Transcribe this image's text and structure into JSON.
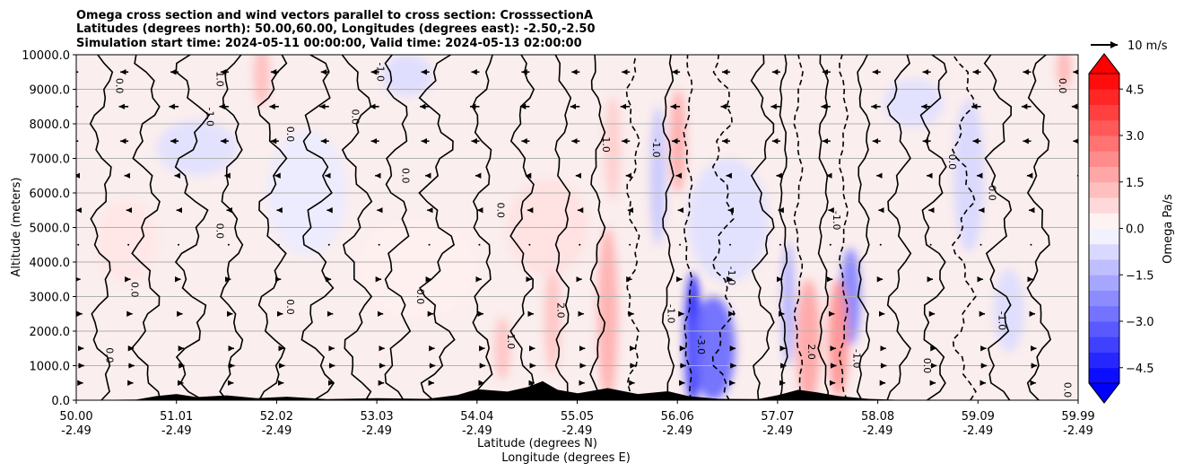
{
  "chart_data": {
    "type": "contour",
    "title_lines": [
      "Omega cross section and wind vectors parallel to cross section: CrosssectionA",
      "Latitudes (degrees north): 50.00,60.00, Longitudes (degrees east): -2.50,-2.50",
      "Simulation start time: 2024-05-11 00:00:00, Valid time: 2024-05-13 02:00:00"
    ],
    "ylabel": "Altitude (meters)",
    "xlabel_lines": [
      "Latitude (degrees N)",
      "Longitude (degrees E)"
    ],
    "ylim": [
      0,
      10000
    ],
    "xlim": [
      50.0,
      59.99
    ],
    "yticks": [
      {
        "v": 0,
        "label": "0.0"
      },
      {
        "v": 1000,
        "label": "1000.0"
      },
      {
        "v": 2000,
        "label": "2000.0"
      },
      {
        "v": 3000,
        "label": "3000.0"
      },
      {
        "v": 4000,
        "label": "4000.0"
      },
      {
        "v": 5000,
        "label": "5000.0"
      },
      {
        "v": 6000,
        "label": "6000.0"
      },
      {
        "v": 7000,
        "label": "7000.0"
      },
      {
        "v": 8000,
        "label": "8000.0"
      },
      {
        "v": 9000,
        "label": "9000.0"
      },
      {
        "v": 10000,
        "label": "10000.0"
      }
    ],
    "xticks": [
      {
        "lat": "50.00",
        "lon": "-2.49"
      },
      {
        "lat": "51.01",
        "lon": "-2.49"
      },
      {
        "lat": "52.02",
        "lon": "-2.49"
      },
      {
        "lat": "53.03",
        "lon": "-2.49"
      },
      {
        "lat": "54.04",
        "lon": "-2.49"
      },
      {
        "lat": "55.05",
        "lon": "-2.49"
      },
      {
        "lat": "56.06",
        "lon": "-2.49"
      },
      {
        "lat": "57.07",
        "lon": "-2.49"
      },
      {
        "lat": "58.08",
        "lon": "-2.49"
      },
      {
        "lat": "59.09",
        "lon": "-2.49"
      },
      {
        "lat": "59.99",
        "lon": "-2.49"
      }
    ],
    "grid": true,
    "colorbar": {
      "label": "Omega Pa/s",
      "range": [
        -5.0,
        5.0
      ],
      "levels": [
        -5.0,
        -4.5,
        -4.0,
        -3.5,
        -3.0,
        -2.5,
        -2.0,
        -1.5,
        -1.0,
        -0.5,
        0.0,
        0.5,
        1.0,
        1.5,
        2.0,
        2.5,
        3.0,
        3.5,
        4.0,
        4.5,
        5.0
      ],
      "ticks": [
        {
          "v": 4.5,
          "label": "4.5"
        },
        {
          "v": 3.0,
          "label": "3.0"
        },
        {
          "v": 1.5,
          "label": "1.5"
        },
        {
          "v": 0.0,
          "label": "0.0"
        },
        {
          "v": -1.5,
          "label": "−1.5"
        },
        {
          "v": -3.0,
          "label": "−3.0"
        },
        {
          "v": -4.5,
          "label": "−4.5"
        }
      ],
      "negative_color": "#0000ff",
      "positive_color": "#ff0000"
    },
    "quiver_key": {
      "label": "10 m/s",
      "value": 10
    },
    "features": [
      {
        "x": 56.15,
        "y": 1800,
        "v": -4.5,
        "wx": 0.08,
        "wy": 1900
      },
      {
        "x": 56.35,
        "y": 1500,
        "v": -3.0,
        "wx": 0.22,
        "wy": 1500
      },
      {
        "x": 57.72,
        "y": 3000,
        "v": -2.5,
        "wx": 0.1,
        "wy": 1400
      },
      {
        "x": 56.5,
        "y": 5200,
        "v": -0.6,
        "wx": 0.4,
        "wy": 1800
      },
      {
        "x": 57.3,
        "y": 1700,
        "v": 1.8,
        "wx": 0.12,
        "wy": 1800
      },
      {
        "x": 57.6,
        "y": 1800,
        "v": 2.2,
        "wx": 0.1,
        "wy": 1700
      },
      {
        "x": 55.3,
        "y": 2500,
        "v": 1.6,
        "wx": 0.1,
        "wy": 2500
      },
      {
        "x": 56.0,
        "y": 7500,
        "v": 1.7,
        "wx": 0.08,
        "wy": 1500
      },
      {
        "x": 55.35,
        "y": 7300,
        "v": 1.0,
        "wx": 0.08,
        "wy": 1500
      },
      {
        "x": 54.75,
        "y": 2400,
        "v": 1.2,
        "wx": 0.08,
        "wy": 1600
      },
      {
        "x": 54.25,
        "y": 1500,
        "v": 1.2,
        "wx": 0.08,
        "wy": 900
      },
      {
        "x": 51.85,
        "y": 9400,
        "v": 1.3,
        "wx": 0.08,
        "wy": 900
      },
      {
        "x": 59.85,
        "y": 9600,
        "v": 1.5,
        "wx": 0.07,
        "wy": 600
      },
      {
        "x": 55.8,
        "y": 6500,
        "v": -1.1,
        "wx": 0.08,
        "wy": 2000
      },
      {
        "x": 58.9,
        "y": 6500,
        "v": -0.8,
        "wx": 0.15,
        "wy": 2200
      },
      {
        "x": 58.35,
        "y": 8600,
        "v": -0.6,
        "wx": 0.3,
        "wy": 700
      },
      {
        "x": 53.3,
        "y": 9400,
        "v": -0.7,
        "wx": 0.25,
        "wy": 600
      },
      {
        "x": 51.2,
        "y": 7300,
        "v": -0.6,
        "wx": 0.4,
        "wy": 800
      },
      {
        "x": 57.1,
        "y": 2800,
        "v": -1.6,
        "wx": 0.06,
        "wy": 1800
      },
      {
        "x": 54.7,
        "y": 5000,
        "v": 0.6,
        "wx": 0.4,
        "wy": 1400
      },
      {
        "x": 53.4,
        "y": 3800,
        "v": 0.3,
        "wx": 0.6,
        "wy": 1500
      },
      {
        "x": 50.5,
        "y": 4600,
        "v": 0.5,
        "wx": 0.3,
        "wy": 1200
      },
      {
        "x": 52.3,
        "y": 6000,
        "v": -0.4,
        "wx": 0.4,
        "wy": 1800
      },
      {
        "x": 59.3,
        "y": 2600,
        "v": -0.7,
        "wx": 0.15,
        "wy": 1200
      }
    ],
    "contour_lines": [
      {
        "x": 50.25,
        "amp": 0.08,
        "style": "solid"
      },
      {
        "x": 50.7,
        "amp": 0.1,
        "style": "solid"
      },
      {
        "x": 51.15,
        "amp": 0.12,
        "style": "solid"
      },
      {
        "x": 51.55,
        "amp": 0.08,
        "style": "solid"
      },
      {
        "x": 51.95,
        "amp": 0.1,
        "style": "solid"
      },
      {
        "x": 52.4,
        "amp": 0.12,
        "style": "solid"
      },
      {
        "x": 52.8,
        "amp": 0.1,
        "style": "solid"
      },
      {
        "x": 53.2,
        "amp": 0.1,
        "style": "solid"
      },
      {
        "x": 53.6,
        "amp": 0.12,
        "style": "solid"
      },
      {
        "x": 54.05,
        "amp": 0.08,
        "style": "solid"
      },
      {
        "x": 54.45,
        "amp": 0.08,
        "style": "solid"
      },
      {
        "x": 54.85,
        "amp": 0.06,
        "style": "solid"
      },
      {
        "x": 55.2,
        "amp": 0.05,
        "style": "solid"
      },
      {
        "x": 55.55,
        "amp": 0.05,
        "style": "dashed"
      },
      {
        "x": 55.9,
        "amp": 0.04,
        "style": "solid"
      },
      {
        "x": 56.1,
        "amp": 0.03,
        "style": "dashed"
      },
      {
        "x": 56.45,
        "amp": 0.08,
        "style": "dashed"
      },
      {
        "x": 56.85,
        "amp": 0.08,
        "style": "solid"
      },
      {
        "x": 57.05,
        "amp": 0.03,
        "style": "solid"
      },
      {
        "x": 57.2,
        "amp": 0.03,
        "style": "dashed"
      },
      {
        "x": 57.45,
        "amp": 0.04,
        "style": "solid"
      },
      {
        "x": 57.65,
        "amp": 0.03,
        "style": "dashed"
      },
      {
        "x": 57.85,
        "amp": 0.05,
        "style": "solid"
      },
      {
        "x": 58.2,
        "amp": 0.08,
        "style": "solid"
      },
      {
        "x": 58.55,
        "amp": 0.1,
        "style": "solid"
      },
      {
        "x": 58.85,
        "amp": 0.08,
        "style": "dashed"
      },
      {
        "x": 59.2,
        "amp": 0.1,
        "style": "solid"
      },
      {
        "x": 59.6,
        "amp": 0.08,
        "style": "solid"
      }
    ],
    "contour_labels": [
      {
        "x": 50.3,
        "y": 1300,
        "text": "0.0"
      },
      {
        "x": 50.55,
        "y": 3200,
        "text": "0.0"
      },
      {
        "x": 50.4,
        "y": 9100,
        "text": "0.0"
      },
      {
        "x": 51.4,
        "y": 9300,
        "text": "1.0"
      },
      {
        "x": 51.3,
        "y": 8200,
        "text": "-1.0"
      },
      {
        "x": 52.1,
        "y": 7700,
        "text": "0.0"
      },
      {
        "x": 52.75,
        "y": 8200,
        "text": "0.0"
      },
      {
        "x": 53.0,
        "y": 9500,
        "text": "-1.0"
      },
      {
        "x": 53.25,
        "y": 6500,
        "text": "0.0"
      },
      {
        "x": 53.4,
        "y": 3000,
        "text": "0.0"
      },
      {
        "x": 52.1,
        "y": 2700,
        "text": "0.0"
      },
      {
        "x": 51.4,
        "y": 4900,
        "text": "0.0"
      },
      {
        "x": 54.2,
        "y": 5500,
        "text": "0.0"
      },
      {
        "x": 54.3,
        "y": 1700,
        "text": "1.0"
      },
      {
        "x": 54.8,
        "y": 2600,
        "text": "2.0"
      },
      {
        "x": 55.25,
        "y": 7400,
        "text": "1.0"
      },
      {
        "x": 55.75,
        "y": 7300,
        "text": "-1.0"
      },
      {
        "x": 55.9,
        "y": 2500,
        "text": "-1.0"
      },
      {
        "x": 56.2,
        "y": 1600,
        "text": "-3.0"
      },
      {
        "x": 56.5,
        "y": 3600,
        "text": "-1.0"
      },
      {
        "x": 57.3,
        "y": 1400,
        "text": "2.0"
      },
      {
        "x": 57.55,
        "y": 5200,
        "text": "-1.0"
      },
      {
        "x": 57.75,
        "y": 1200,
        "text": "-1.0"
      },
      {
        "x": 58.45,
        "y": 1000,
        "text": "0.0"
      },
      {
        "x": 58.7,
        "y": 6900,
        "text": "0.0"
      },
      {
        "x": 59.2,
        "y": 2300,
        "text": "-1.0"
      },
      {
        "x": 59.1,
        "y": 6000,
        "text": "0.0"
      },
      {
        "x": 59.8,
        "y": 9100,
        "text": "0.0"
      },
      {
        "x": 59.85,
        "y": 300,
        "text": "0.0"
      }
    ],
    "terrain": [
      {
        "x": 50.0,
        "h": 0
      },
      {
        "x": 50.6,
        "h": 20
      },
      {
        "x": 50.8,
        "h": 120
      },
      {
        "x": 51.0,
        "h": 180
      },
      {
        "x": 51.2,
        "h": 90
      },
      {
        "x": 51.5,
        "h": 140
      },
      {
        "x": 51.8,
        "h": 60
      },
      {
        "x": 52.1,
        "h": 100
      },
      {
        "x": 52.5,
        "h": 30
      },
      {
        "x": 53.0,
        "h": 60
      },
      {
        "x": 53.5,
        "h": 40
      },
      {
        "x": 53.8,
        "h": 150
      },
      {
        "x": 54.0,
        "h": 320
      },
      {
        "x": 54.3,
        "h": 250
      },
      {
        "x": 54.5,
        "h": 380
      },
      {
        "x": 54.65,
        "h": 550
      },
      {
        "x": 54.8,
        "h": 300
      },
      {
        "x": 55.0,
        "h": 200
      },
      {
        "x": 55.3,
        "h": 350
      },
      {
        "x": 55.6,
        "h": 180
      },
      {
        "x": 55.9,
        "h": 260
      },
      {
        "x": 56.1,
        "h": 120
      },
      {
        "x": 56.4,
        "h": 40
      },
      {
        "x": 56.8,
        "h": 30
      },
      {
        "x": 57.0,
        "h": 150
      },
      {
        "x": 57.2,
        "h": 300
      },
      {
        "x": 57.4,
        "h": 220
      },
      {
        "x": 57.6,
        "h": 120
      },
      {
        "x": 57.9,
        "h": 40
      },
      {
        "x": 58.3,
        "h": 0
      },
      {
        "x": 59.99,
        "h": 0
      }
    ],
    "wind_rows": [
      {
        "y": 9500,
        "u": -3.0
      },
      {
        "y": 8500,
        "u": -3.5
      },
      {
        "y": 7500,
        "u": -3.0
      },
      {
        "y": 6500,
        "u": -1.5
      },
      {
        "y": 5500,
        "u": -0.8
      },
      {
        "y": 4500,
        "u": 0.3
      },
      {
        "y": 3500,
        "u": 0.8
      },
      {
        "y": 2500,
        "u": 1.5
      },
      {
        "y": 1500,
        "u": 2.0
      },
      {
        "y": 1000,
        "u": 2.2
      },
      {
        "y": 500,
        "u": 1.8
      }
    ]
  }
}
